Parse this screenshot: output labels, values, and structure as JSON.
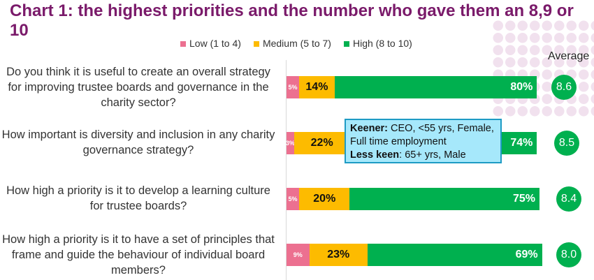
{
  "chart_data": {
    "type": "bar",
    "orientation": "horizontal",
    "stacked": true,
    "title": "Chart 1: the highest priorities and the number who gave them an 8,9 or 10",
    "categories": [
      "Do you think it is useful to create an overall strategy for improving trustee boards and governance in the charity sector?",
      "How important is diversity and inclusion in any charity governance strategy?",
      "How high a priority is it to develop a learning culture for trustee boards?",
      "How high a priority is it to have a set of principles that frame and guide the behaviour of individual board members?"
    ],
    "series": [
      {
        "name": "Low (1 to 4)",
        "color": "#ec7090",
        "values": [
          5,
          3,
          5,
          9
        ],
        "labels": [
          "5%",
          "3%",
          "5%",
          "9%"
        ]
      },
      {
        "name": "Medium (5 to 7)",
        "color": "#fdbb00",
        "values": [
          14,
          22,
          20,
          23
        ],
        "labels": [
          "14%",
          "22%",
          "20%",
          "23%"
        ]
      },
      {
        "name": "High (8 to 10)",
        "color": "#00b04f",
        "values": [
          80,
          74,
          75,
          69
        ],
        "labels": [
          "80%",
          "74%",
          "75%",
          "69%"
        ]
      }
    ],
    "average_label": "Average",
    "averages": [
      "8.6",
      "8.5",
      "8.4",
      "8.0"
    ],
    "legend_position": "top",
    "grid": false
  },
  "annotation": {
    "keener_label": "Keener:",
    "keener_text": " CEO, <55 yrs, Female, Full time employment",
    "less_label": "Less keen",
    "less_text": ": 65+ yrs, Male"
  }
}
